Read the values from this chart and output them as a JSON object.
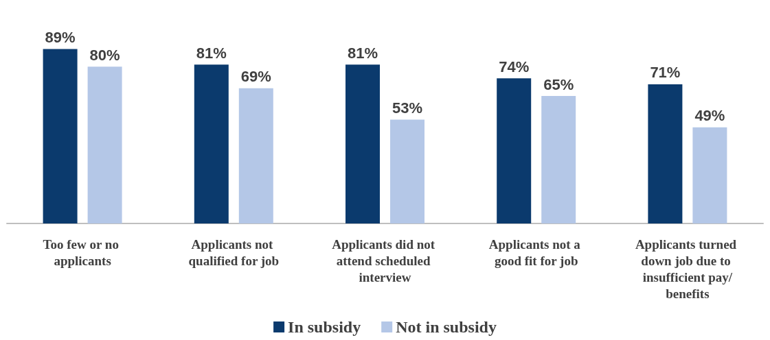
{
  "chart_data": {
    "type": "bar",
    "categories": [
      "Too few or no applicants",
      "Applicants not qualified for job",
      "Applicants did not attend scheduled interview",
      "Applicants not a good fit for job",
      "Applicants turned down job due to insufficient pay/benefits"
    ],
    "series": [
      {
        "name": "In subsidy",
        "color": "#0b3a6d",
        "values": [
          89,
          81,
          81,
          74,
          71
        ],
        "value_labels": [
          "89%",
          "81%",
          "81%",
          "74%",
          "71%"
        ]
      },
      {
        "name": "Not in subsidy",
        "color": "#b4c7e7",
        "values": [
          80,
          69,
          53,
          65,
          49
        ],
        "value_labels": [
          "80%",
          "69%",
          "53%",
          "65%",
          "49%"
        ]
      }
    ],
    "legend": "bottom"
  }
}
